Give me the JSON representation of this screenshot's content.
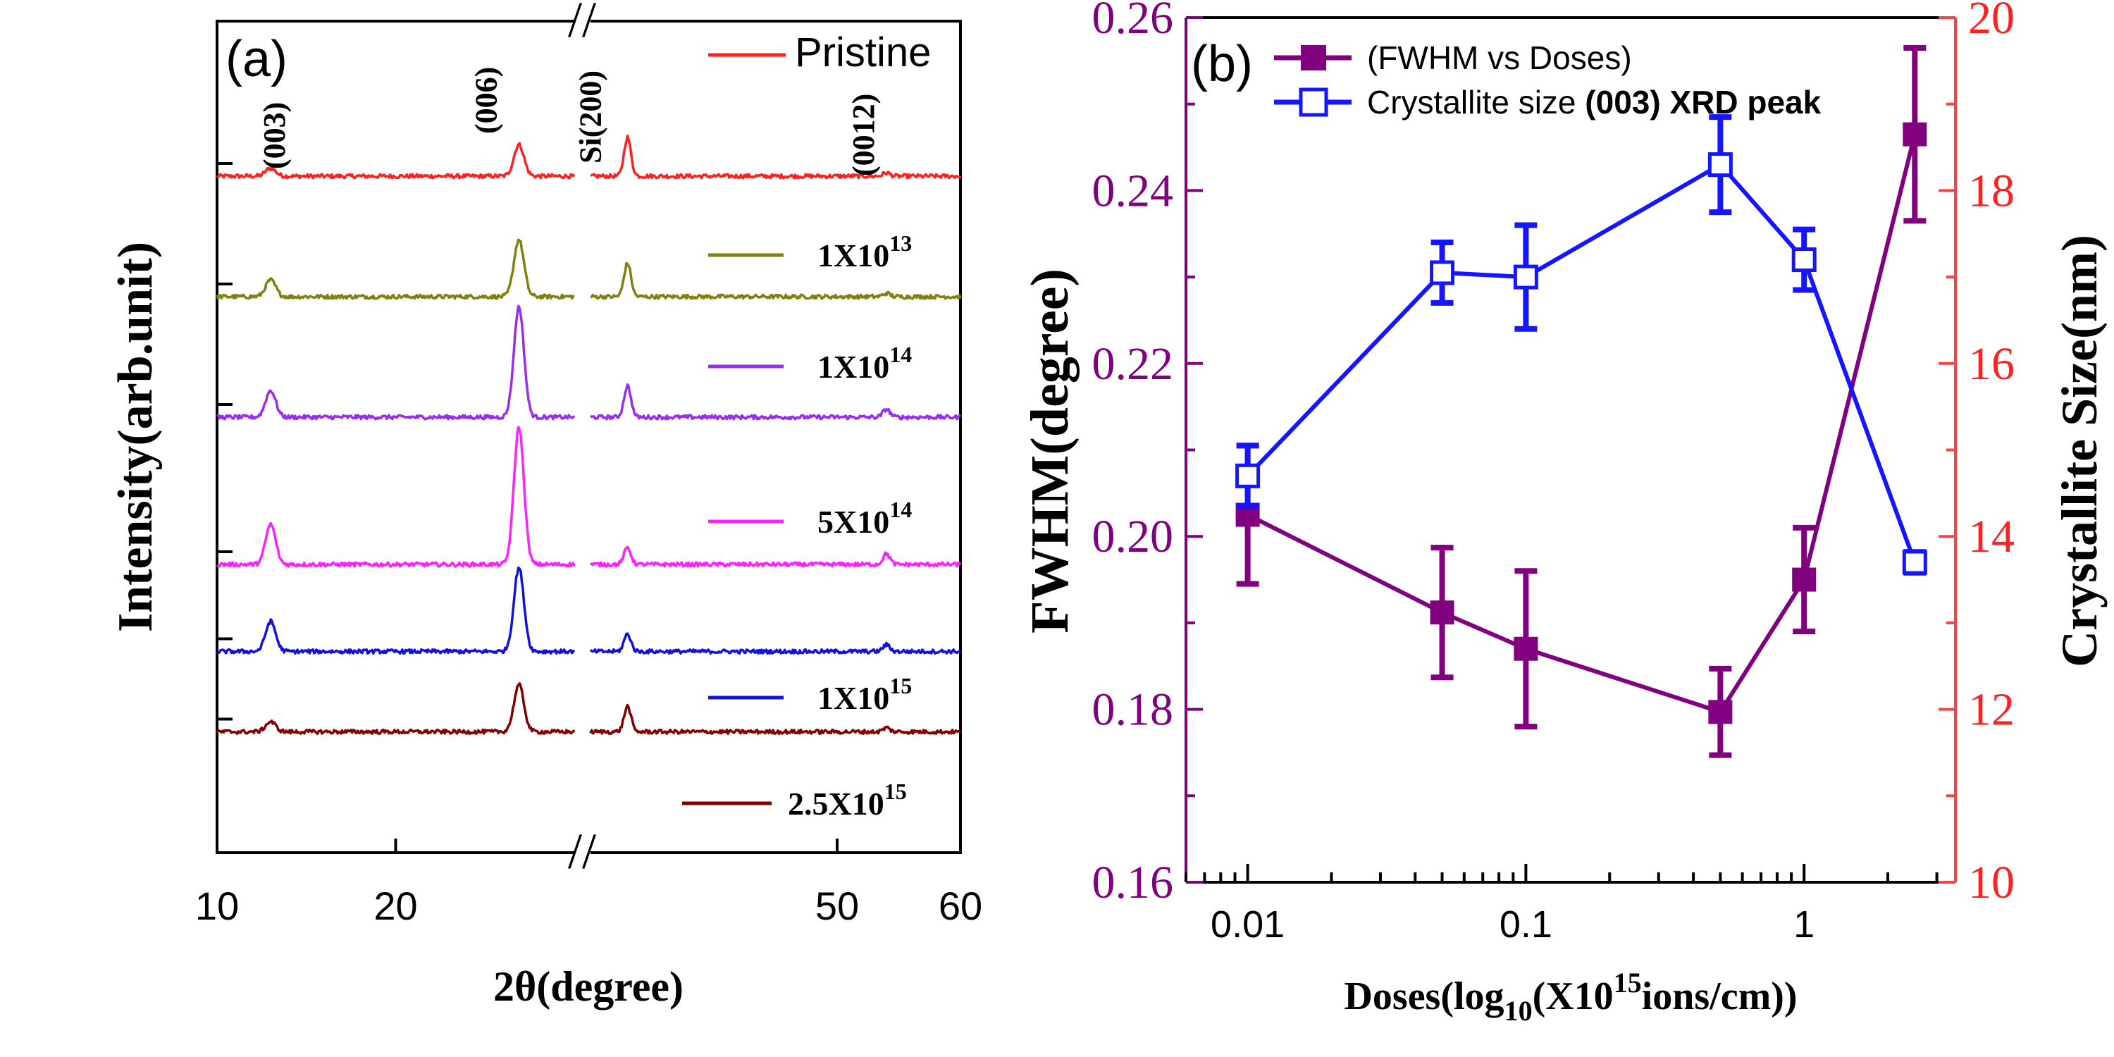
{
  "chart_data": [
    {
      "type": "line",
      "panel_label": "(a)",
      "xlabel": "2θ(degree)",
      "ylabel": "Intensity(arb.unit)",
      "x_ticks": [
        10,
        20,
        50,
        60
      ],
      "x_axis_break": "//",
      "x_segments": [
        [
          10,
          30
        ],
        [
          30,
          60
        ]
      ],
      "peak_labels": [
        "(003)",
        "(006)",
        "Si(200)",
        "(0012)"
      ],
      "peak_positions": [
        13.0,
        26.9,
        33.0,
        54.0
      ],
      "series": [
        {
          "name": "Pristine",
          "legend_base": "Pristine",
          "legend_exp": "",
          "color": "#ff2020",
          "baseline": 0.0,
          "peaks": [
            0.012,
            0.047,
            0.058,
            0.005
          ]
        },
        {
          "name": "1X10^13",
          "legend_base": "1X10",
          "legend_exp": "13",
          "color": "#808010",
          "baseline": 0.18,
          "peaks": [
            0.025,
            0.085,
            0.05,
            0.005
          ]
        },
        {
          "name": "1X10^14",
          "legend_base": "1X10",
          "legend_exp": "14",
          "color": "#9a2cf0",
          "baseline": 0.36,
          "peaks": [
            0.04,
            0.165,
            0.047,
            0.012
          ]
        },
        {
          "name": "5X10^14",
          "legend_base": "5X10",
          "legend_exp": "14",
          "color": "#ff20ff",
          "baseline": 0.58,
          "peaks": [
            0.06,
            0.205,
            0.025,
            0.016
          ]
        },
        {
          "name": "1X10^15",
          "legend_base": "1X10",
          "legend_exp": "15",
          "color": "#1010e0",
          "baseline": 0.71,
          "peaks": [
            0.045,
            0.125,
            0.026,
            0.01
          ]
        },
        {
          "name": "2.5X10^15",
          "legend_base": "2.5X10",
          "legend_exp": "15",
          "color": "#800000",
          "baseline": 0.83,
          "peaks": [
            0.015,
            0.07,
            0.038,
            0.006
          ]
        }
      ]
    },
    {
      "type": "line",
      "panel_label": "(b)",
      "xlabel_parts": {
        "pre": "Doses(log",
        "sub": "10",
        "mid": "(X10",
        "sup": "15",
        "post": "ions/cm))"
      },
      "x_scale": "log",
      "xlim": [
        0.006,
        3.5
      ],
      "x_tick_labels": [
        "0.01",
        "0.1",
        "1"
      ],
      "ylabel_left": "FWHM(degree)",
      "ylim_left": [
        0.16,
        0.26
      ],
      "y_ticks_left": [
        "0.16",
        "0.18",
        "0.20",
        "0.22",
        "0.24",
        "0.26"
      ],
      "ylabel_right": "Crystallite Size(nm)",
      "ylim_right": [
        10,
        20
      ],
      "y_ticks_right": [
        "10",
        "12",
        "14",
        "16",
        "18",
        "20"
      ],
      "legend": [
        {
          "text": "(FWHM vs Doses)"
        },
        {
          "text": "Crystallite size ",
          "bold_text": "(003) XRD peak"
        }
      ],
      "series": [
        {
          "name": "FWHM vs Doses",
          "axis": "left",
          "color": "#800080",
          "marker": "filled-square",
          "x": [
            0.01,
            0.05,
            0.1,
            0.5,
            1.0,
            2.5
          ],
          "y": [
            0.2025,
            0.1912,
            0.187,
            0.1797,
            0.195,
            0.2465
          ],
          "err": [
            0.008,
            0.0075,
            0.009,
            0.005,
            0.006,
            0.01
          ]
        },
        {
          "name": "Crystallite size (003) XRD peak",
          "axis": "right",
          "color": "#1515ff",
          "marker": "open-square",
          "x": [
            0.01,
            0.05,
            0.1,
            0.5,
            1.0,
            2.5
          ],
          "y": [
            14.7,
            17.05,
            17.0,
            18.3,
            17.2,
            13.7
          ],
          "err": [
            0.35,
            0.35,
            0.6,
            0.55,
            0.35,
            0.12
          ]
        }
      ]
    }
  ]
}
